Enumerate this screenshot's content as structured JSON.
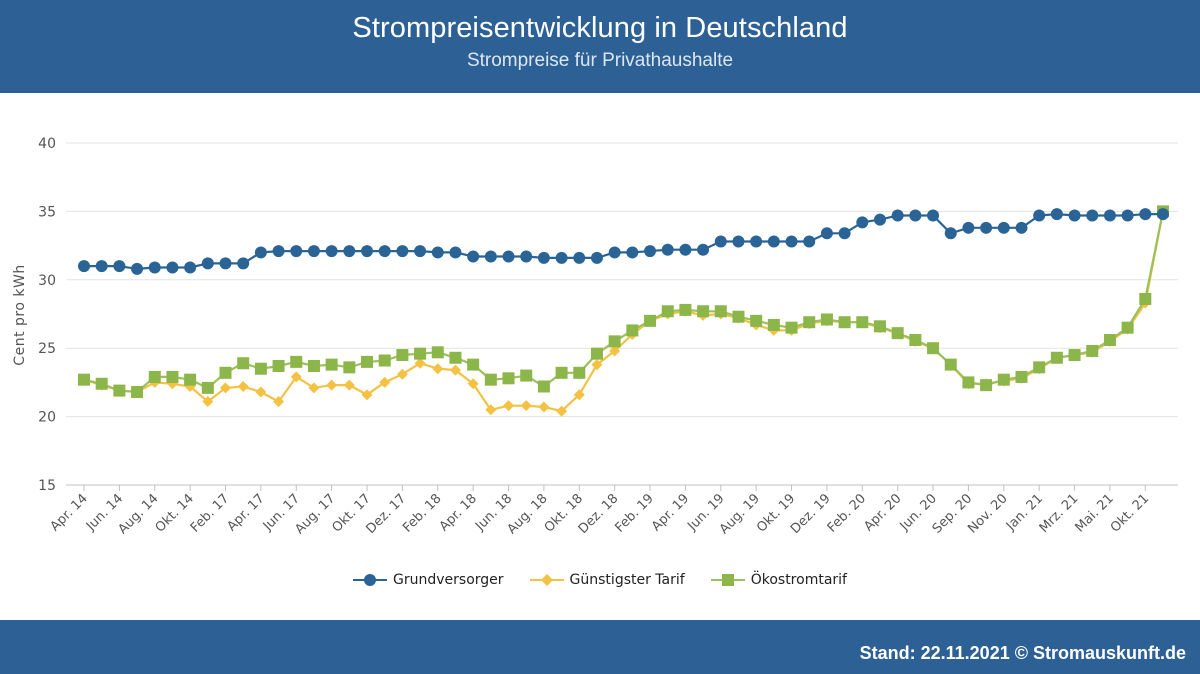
{
  "header": {
    "title": "Strompreisentwicklung in Deutschland",
    "subtitle": "Strompreise für Privathaushalte"
  },
  "footer": {
    "stand": "Stand: 22.11.2021 © Stromauskunft.de"
  },
  "colors": {
    "header_bg": "#2d6196",
    "grundversorger": "#2a6496",
    "guenstigster": "#f4c242",
    "oekostrom": "#8cb54a",
    "oekostrom_line": "#9cc05a"
  },
  "chart_data": {
    "type": "line",
    "title": "Strompreisentwicklung in Deutschland",
    "subtitle": "Strompreise für Privathaushalte",
    "ylabel": "Cent pro kWh",
    "xlabel": "",
    "ylim": [
      15,
      40
    ],
    "yticks": [
      15,
      20,
      25,
      30,
      35,
      40
    ],
    "grid": true,
    "legend": "bottom-center",
    "x_tick_labels": [
      "Apr. 14",
      "Jun. 14",
      "Aug. 14",
      "Okt. 14",
      "Feb. 17",
      "Apr. 17",
      "Jun. 17",
      "Aug. 17",
      "Okt. 17",
      "Dez. 17",
      "Feb. 18",
      "Apr. 18",
      "Jun. 18",
      "Aug. 18",
      "Okt. 18",
      "Dez. 18",
      "Feb. 19",
      "Apr. 19",
      "Jun. 19",
      "Aug. 19",
      "Okt. 19",
      "Dez. 19",
      "Feb. 20",
      "Apr. 20",
      "Jun. 20",
      "Sep. 20",
      "Nov. 20",
      "Jan. 21",
      "Mrz. 21",
      "Mai. 21",
      "Okt. 21"
    ],
    "series": [
      {
        "name": "Grundversorger",
        "marker": "circle",
        "values": [
          31.0,
          31.0,
          31.0,
          30.8,
          30.9,
          30.9,
          30.9,
          31.2,
          31.2,
          31.2,
          32.0,
          32.1,
          32.1,
          32.1,
          32.1,
          32.1,
          32.1,
          32.1,
          32.1,
          32.1,
          32.0,
          32.0,
          31.7,
          31.7,
          31.7,
          31.7,
          31.6,
          31.6,
          31.6,
          31.6,
          32.0,
          32.0,
          32.1,
          32.2,
          32.2,
          32.2,
          32.8,
          32.8,
          32.8,
          32.8,
          32.8,
          32.8,
          33.4,
          33.4,
          34.2,
          34.4,
          34.7,
          34.7,
          34.7,
          33.4,
          33.8,
          33.8,
          33.8,
          33.8,
          34.7,
          34.8,
          34.7,
          34.7,
          34.7,
          34.7,
          34.8,
          34.8
        ]
      },
      {
        "name": "Günstigster Tarif",
        "marker": "diamond",
        "values": [
          22.7,
          22.3,
          21.9,
          21.8,
          22.5,
          22.4,
          22.2,
          21.1,
          22.1,
          22.2,
          21.8,
          21.1,
          22.9,
          22.1,
          22.3,
          22.3,
          21.6,
          22.5,
          23.1,
          23.9,
          23.5,
          23.4,
          22.4,
          20.5,
          20.8,
          20.8,
          20.7,
          20.4,
          21.6,
          23.8,
          24.8,
          26.0,
          27.0,
          27.5,
          27.7,
          27.4,
          27.5,
          27.2,
          26.7,
          26.3,
          26.3,
          26.8,
          27.0,
          26.9,
          26.9,
          26.5,
          26.1,
          25.5,
          25.0,
          23.8,
          22.4,
          22.4,
          22.6,
          22.8,
          23.5,
          24.3,
          24.5,
          24.7,
          25.5,
          26.4,
          28.3,
          35.0
        ]
      },
      {
        "name": "Ökostromtarif",
        "marker": "square",
        "values": [
          22.7,
          22.4,
          21.9,
          21.8,
          22.9,
          22.9,
          22.7,
          22.1,
          23.2,
          23.9,
          23.5,
          23.7,
          24.0,
          23.7,
          23.8,
          23.6,
          24.0,
          24.1,
          24.5,
          24.6,
          24.7,
          24.3,
          23.8,
          22.7,
          22.8,
          23.0,
          22.2,
          23.2,
          23.2,
          24.6,
          25.5,
          26.3,
          27.0,
          27.7,
          27.8,
          27.7,
          27.7,
          27.3,
          27.0,
          26.7,
          26.5,
          26.9,
          27.1,
          26.9,
          26.9,
          26.6,
          26.1,
          25.6,
          25.0,
          23.8,
          22.5,
          22.3,
          22.7,
          22.9,
          23.6,
          24.3,
          24.5,
          24.8,
          25.6,
          26.5,
          28.6,
          35.0
        ]
      }
    ]
  }
}
